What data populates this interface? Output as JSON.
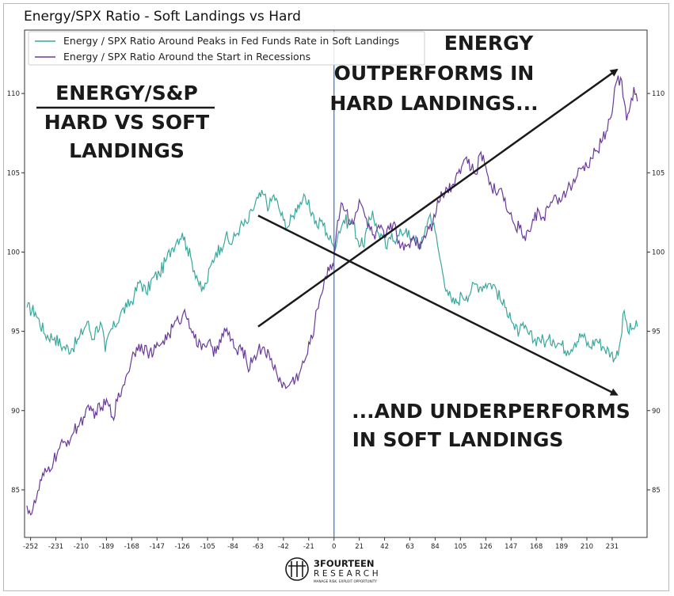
{
  "title": "Energy/SPX Ratio - Soft Landings vs Hard",
  "colors": {
    "soft": "#3aa89d",
    "hard": "#6a3a9a",
    "vline": "#3d7fd0",
    "arrow": "#1a1a1a"
  },
  "annotations": {
    "left_line1": "ENERGY/S&P",
    "left_line2": "HARD VS SOFT",
    "left_line3": "LANDINGS",
    "top_line1": "ENERGY",
    "top_line2": "OUTPERFORMS IN",
    "top_line3": "HARD LANDINGS...",
    "bottom_line1": "...AND UNDERPERFORMS",
    "bottom_line2": "IN SOFT LANDINGS"
  },
  "logo": {
    "name": "3FOURTEEN",
    "sub": "RESEARCH",
    "tagline": "MANAGE RISK. EXPLOIT OPPORTUNITY"
  },
  "chart_data": {
    "type": "line",
    "title": "Energy/SPX Ratio - Soft Landings vs Hard",
    "xlabel": "",
    "ylabel": "",
    "xlim": [
      -257,
      260
    ],
    "ylim": [
      82,
      114
    ],
    "x_ticks": [
      -252,
      -231,
      -210,
      -189,
      -168,
      -147,
      -126,
      -105,
      -84,
      -63,
      -42,
      -21,
      0,
      21,
      42,
      63,
      84,
      105,
      126,
      147,
      168,
      189,
      210,
      231
    ],
    "y_ticks": [
      85,
      90,
      95,
      100,
      105,
      110
    ],
    "vertical_line_x": 0,
    "grid": false,
    "legend": "top-left",
    "series": [
      {
        "name": "Energy / SPX Ratio Around Peaks in Fed Funds Rate in Soft Landings",
        "color": "#3aa89d",
        "points": [
          [
            -255,
            96.5
          ],
          [
            -248,
            96.2
          ],
          [
            -240,
            94.8
          ],
          [
            -232,
            94.6
          ],
          [
            -225,
            94.0
          ],
          [
            -218,
            93.9
          ],
          [
            -212,
            94.5
          ],
          [
            -205,
            95.6
          ],
          [
            -200,
            94.5
          ],
          [
            -197,
            95.3
          ],
          [
            -193,
            95.4
          ],
          [
            -190,
            93.7
          ],
          [
            -186,
            95.0
          ],
          [
            -182,
            95.3
          ],
          [
            -177,
            96.2
          ],
          [
            -172,
            96.5
          ],
          [
            -166,
            97.2
          ],
          [
            -161,
            98.2
          ],
          [
            -156,
            97.4
          ],
          [
            -150,
            98.4
          ],
          [
            -145,
            98.6
          ],
          [
            -140,
            99.4
          ],
          [
            -135,
            100.2
          ],
          [
            -130,
            100.8
          ],
          [
            -126,
            101.2
          ],
          [
            -122,
            100.3
          ],
          [
            -118,
            99.4
          ],
          [
            -114,
            98.5
          ],
          [
            -110,
            97.5
          ],
          [
            -106,
            98.0
          ],
          [
            -102,
            99.2
          ],
          [
            -98,
            100.0
          ],
          [
            -94,
            100.3
          ],
          [
            -90,
            101.0
          ],
          [
            -86,
            100.5
          ],
          [
            -82,
            101.0
          ],
          [
            -78,
            101.6
          ],
          [
            -72,
            101.8
          ],
          [
            -68,
            102.6
          ],
          [
            -63,
            103.4
          ],
          [
            -58,
            103.6
          ],
          [
            -54,
            102.8
          ],
          [
            -50,
            103.6
          ],
          [
            -46,
            102.8
          ],
          [
            -42,
            102.0
          ],
          [
            -38,
            101.6
          ],
          [
            -34,
            102.3
          ],
          [
            -30,
            103.0
          ],
          [
            -26,
            103.3
          ],
          [
            -22,
            103.0
          ],
          [
            -18,
            102.5
          ],
          [
            -14,
            101.6
          ],
          [
            -10,
            102.0
          ],
          [
            -6,
            101.2
          ],
          [
            -2,
            100.6
          ],
          [
            0,
            100.3
          ],
          [
            4,
            101.3
          ],
          [
            8,
            102.0
          ],
          [
            12,
            101.9
          ],
          [
            16,
            101.8
          ],
          [
            20,
            100.7
          ],
          [
            24,
            100.4
          ],
          [
            28,
            101.5
          ],
          [
            32,
            102.6
          ],
          [
            36,
            101.3
          ],
          [
            40,
            101.0
          ],
          [
            44,
            100.2
          ],
          [
            48,
            101.2
          ],
          [
            52,
            100.8
          ],
          [
            56,
            101.2
          ],
          [
            60,
            101.5
          ],
          [
            64,
            100.6
          ],
          [
            68,
            101.0
          ],
          [
            72,
            100.2
          ],
          [
            76,
            101.6
          ],
          [
            80,
            102.4
          ],
          [
            84,
            101.3
          ],
          [
            87,
            100.0
          ],
          [
            90,
            98.8
          ],
          [
            94,
            97.6
          ],
          [
            98,
            96.8
          ],
          [
            102,
            96.8
          ],
          [
            106,
            97.3
          ],
          [
            110,
            97.2
          ],
          [
            114,
            97.6
          ],
          [
            118,
            98.0
          ],
          [
            122,
            97.8
          ],
          [
            126,
            98.0
          ],
          [
            130,
            98.0
          ],
          [
            134,
            97.8
          ],
          [
            138,
            97.0
          ],
          [
            142,
            96.5
          ],
          [
            146,
            96.2
          ],
          [
            150,
            95.1
          ],
          [
            154,
            95.0
          ],
          [
            158,
            95.2
          ],
          [
            162,
            94.8
          ],
          [
            166,
            94.4
          ],
          [
            170,
            94.6
          ],
          [
            176,
            94.3
          ],
          [
            182,
            94.5
          ],
          [
            188,
            94.2
          ],
          [
            194,
            93.8
          ],
          [
            200,
            94.3
          ],
          [
            206,
            94.8
          ],
          [
            212,
            94.0
          ],
          [
            218,
            94.5
          ],
          [
            224,
            94.0
          ],
          [
            230,
            93.6
          ],
          [
            234,
            93.3
          ],
          [
            238,
            94.5
          ],
          [
            241,
            96.3
          ],
          [
            244,
            95.0
          ],
          [
            248,
            95.2
          ],
          [
            252,
            95.3
          ]
        ]
      },
      {
        "name": "Energy / SPX Ratio Around the Start in Recessions",
        "color": "#6a3a9a",
        "points": [
          [
            -255,
            84.0
          ],
          [
            -251,
            83.5
          ],
          [
            -247,
            84.5
          ],
          [
            -243,
            85.6
          ],
          [
            -238,
            86.2
          ],
          [
            -233,
            86.8
          ],
          [
            -228,
            87.6
          ],
          [
            -223,
            88.0
          ],
          [
            -218,
            88.4
          ],
          [
            -213,
            89.0
          ],
          [
            -208,
            89.6
          ],
          [
            -203,
            90.0
          ],
          [
            -198,
            89.9
          ],
          [
            -193,
            90.2
          ],
          [
            -188,
            90.5
          ],
          [
            -184,
            89.6
          ],
          [
            -180,
            90.6
          ],
          [
            -176,
            91.4
          ],
          [
            -172,
            92.3
          ],
          [
            -168,
            93.3
          ],
          [
            -164,
            94.0
          ],
          [
            -160,
            94.2
          ],
          [
            -155,
            93.7
          ],
          [
            -150,
            93.6
          ],
          [
            -146,
            94.1
          ],
          [
            -142,
            94.4
          ],
          [
            -137,
            94.8
          ],
          [
            -133,
            95.4
          ],
          [
            -129,
            95.6
          ],
          [
            -125,
            96.2
          ],
          [
            -121,
            95.8
          ],
          [
            -117,
            95.0
          ],
          [
            -113,
            94.0
          ],
          [
            -108,
            94.2
          ],
          [
            -104,
            94.4
          ],
          [
            -100,
            93.4
          ],
          [
            -95,
            94.5
          ],
          [
            -90,
            95.0
          ],
          [
            -85,
            94.5
          ],
          [
            -80,
            93.5
          ],
          [
            -76,
            94.0
          ],
          [
            -72,
            92.8
          ],
          [
            -67,
            93.3
          ],
          [
            -63,
            93.8
          ],
          [
            -58,
            94.0
          ],
          [
            -53,
            93.2
          ],
          [
            -48,
            92.5
          ],
          [
            -44,
            91.8
          ],
          [
            -40,
            91.4
          ],
          [
            -36,
            91.8
          ],
          [
            -32,
            92.0
          ],
          [
            -28,
            92.5
          ],
          [
            -24,
            93.2
          ],
          [
            -20,
            94.2
          ],
          [
            -16,
            95.5
          ],
          [
            -12,
            97.0
          ],
          [
            -8,
            98.3
          ],
          [
            -4,
            98.8
          ],
          [
            -1,
            99.3
          ],
          [
            0,
            99.6
          ],
          [
            3,
            102.0
          ],
          [
            6,
            103.1
          ],
          [
            10,
            102.6
          ],
          [
            14,
            101.8
          ],
          [
            18,
            102.5
          ],
          [
            22,
            103.1
          ],
          [
            26,
            102.2
          ],
          [
            30,
            101.4
          ],
          [
            34,
            100.8
          ],
          [
            38,
            101.5
          ],
          [
            42,
            100.9
          ],
          [
            46,
            101.4
          ],
          [
            50,
            101.9
          ],
          [
            54,
            100.7
          ],
          [
            58,
            100.1
          ],
          [
            62,
            100.5
          ],
          [
            66,
            101.0
          ],
          [
            70,
            100.5
          ],
          [
            74,
            100.8
          ],
          [
            78,
            101.6
          ],
          [
            82,
            101.8
          ],
          [
            86,
            103.3
          ],
          [
            90,
            103.6
          ],
          [
            94,
            104.0
          ],
          [
            98,
            104.2
          ],
          [
            102,
            105.0
          ],
          [
            106,
            105.4
          ],
          [
            110,
            106.0
          ],
          [
            114,
            105.2
          ],
          [
            118,
            104.9
          ],
          [
            122,
            106.3
          ],
          [
            126,
            105.4
          ],
          [
            130,
            104.4
          ],
          [
            134,
            103.8
          ],
          [
            138,
            104.0
          ],
          [
            142,
            103.4
          ],
          [
            146,
            102.4
          ],
          [
            150,
            101.7
          ],
          [
            154,
            101.5
          ],
          [
            158,
            101.0
          ],
          [
            162,
            101.3
          ],
          [
            166,
            102.0
          ],
          [
            170,
            102.6
          ],
          [
            174,
            102.2
          ],
          [
            178,
            102.8
          ],
          [
            182,
            103.3
          ],
          [
            186,
            103.0
          ],
          [
            190,
            103.6
          ],
          [
            194,
            104.0
          ],
          [
            198,
            104.2
          ],
          [
            202,
            104.8
          ],
          [
            206,
            105.3
          ],
          [
            210,
            105.4
          ],
          [
            214,
            105.9
          ],
          [
            218,
            106.4
          ],
          [
            222,
            106.9
          ],
          [
            226,
            107.6
          ],
          [
            230,
            108.5
          ],
          [
            234,
            110.6
          ],
          [
            238,
            111.0
          ],
          [
            240,
            109.8
          ],
          [
            243,
            108.3
          ],
          [
            246,
            109.2
          ],
          [
            249,
            110.4
          ],
          [
            252,
            109.5
          ]
        ]
      }
    ],
    "arrows": [
      {
        "from": [
          -63,
          95.3
        ],
        "to": [
          235,
          111.5
        ]
      },
      {
        "from": [
          -63,
          102.3
        ],
        "to": [
          235,
          91.0
        ]
      }
    ]
  }
}
